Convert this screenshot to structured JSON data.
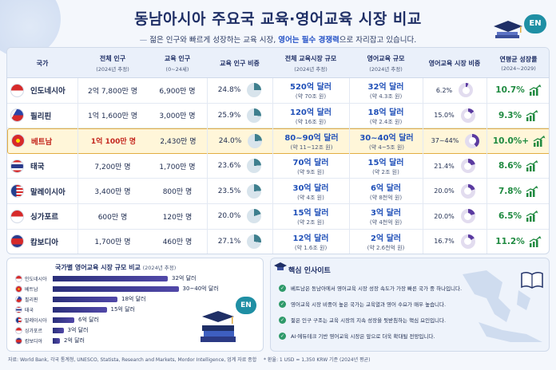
{
  "header": {
    "title": "동남아시아 주요국 교육·영어교육 시장 비교",
    "subtitle_pre": "젊은 인구와 빠르게 성장하는 교육 시장, ",
    "subtitle_hl1": "영어는 필수 경쟁력",
    "subtitle_post": "으로 자리잡고 있습니다.",
    "en_badge": "EN"
  },
  "table": {
    "columns": {
      "country": "국가",
      "pop": "전체 인구",
      "pop_sub": "(2024년 추정)",
      "edu_pop": "교육 인구",
      "edu_pop_sub": "(0~24세)",
      "edu_ratio": "교육 인구 비중",
      "edu_market": "전체 교육시장 규모",
      "edu_market_sub": "(2024년 추정)",
      "eng_market": "영어교육 규모",
      "eng_market_sub": "(2024년 추정)",
      "eng_share": "영어교육 시장 비중",
      "cagr": "연평균 성장률",
      "cagr_sub": "(2024~2029)",
      "en_icon": "EN"
    },
    "rows": [
      {
        "country": "인도네시아",
        "pop": "2억 7,800만 명",
        "edu_pop": "6,900만 명",
        "edu_ratio": "24.8%",
        "edu_ratio_v": 24.8,
        "market": "520억 달러",
        "market_krw": "(약 70조 원)",
        "eng": "32억 달러",
        "eng_krw": "(약 4.3조 원)",
        "share": "6.2%",
        "share_v": 6.2,
        "cagr": "10.7%"
      },
      {
        "country": "필리핀",
        "pop": "1억 1,600만 명",
        "edu_pop": "3,000만 명",
        "edu_ratio": "25.9%",
        "edu_ratio_v": 25.9,
        "market": "120억 달러",
        "market_krw": "(약 16조 원)",
        "eng": "18억 달러",
        "eng_krw": "(약 2.4조 원)",
        "share": "15.0%",
        "share_v": 15.0,
        "cagr": "9.3%"
      },
      {
        "country": "베트남",
        "pop": "1억 100만 명",
        "edu_pop": "2,430만 명",
        "edu_ratio": "24.0%",
        "edu_ratio_v": 24.0,
        "market": "80~90억 달러",
        "market_krw": "(약 11~12조 원)",
        "eng": "30~40억 달러",
        "eng_krw": "(약 4~5조 원)",
        "share": "37~44%",
        "share_v": 40,
        "cagr": "10.0%+"
      },
      {
        "country": "태국",
        "pop": "7,200만 명",
        "edu_pop": "1,700만 명",
        "edu_ratio": "23.6%",
        "edu_ratio_v": 23.6,
        "market": "70억 달러",
        "market_krw": "(약 9조 원)",
        "eng": "15억 달러",
        "eng_krw": "(약 2조 원)",
        "share": "21.4%",
        "share_v": 21.4,
        "cagr": "8.6%"
      },
      {
        "country": "말레이시아",
        "pop": "3,400만 명",
        "edu_pop": "800만 명",
        "edu_ratio": "23.5%",
        "edu_ratio_v": 23.5,
        "market": "30억 달러",
        "market_krw": "(약 4조 원)",
        "eng": "6억 달러",
        "eng_krw": "(약 8천억 원)",
        "share": "20.0%",
        "share_v": 20.0,
        "cagr": "7.8%"
      },
      {
        "country": "싱가포르",
        "pop": "600만 명",
        "edu_pop": "120만 명",
        "edu_ratio": "20.0%",
        "edu_ratio_v": 20.0,
        "market": "15억 달러",
        "market_krw": "(약 2조 원)",
        "eng": "3억 달러",
        "eng_krw": "(약 4천억 원)",
        "share": "20.0%",
        "share_v": 20.0,
        "cagr": "6.5%"
      },
      {
        "country": "캄보디아",
        "pop": "1,700만 명",
        "edu_pop": "460만 명",
        "edu_ratio": "27.1%",
        "edu_ratio_v": 27.1,
        "market": "12억 달러",
        "market_krw": "(약 1.6조 원)",
        "eng": "2억 달러",
        "eng_krw": "(약 2.6천억 원)",
        "share": "16.7%",
        "share_v": 16.7,
        "cagr": "11.2%"
      }
    ]
  },
  "bar_panel": {
    "title": "국가별 영어교육 시장 규모 비교",
    "title_sub": "(2024년 추정)",
    "en_badge": "EN"
  },
  "chart_data": {
    "type": "bar",
    "title": "국가별 영어교육 시장 규모 비교",
    "categories": [
      "인도네시아",
      "베트남",
      "필리핀",
      "태국",
      "말레이시아",
      "싱가포르",
      "캄보디아"
    ],
    "values": [
      32,
      35,
      18,
      15,
      6,
      3,
      2
    ],
    "value_labels": [
      "32억 달러",
      "30~40억 달러",
      "18억 달러",
      "15억 달러",
      "6억 달러",
      "3억 달러",
      "2억 달러"
    ],
    "orientation": "horizontal"
  },
  "insights": {
    "title": "핵심 인사이트",
    "items": [
      "베트남은 동남아에서 영어교육 시장 성장 속도가 가장 빠른 국가 중 하나입니다.",
      "영어교육 시장 비중이 높은 국가는 교육열과 영어 수요가 매우 높습니다.",
      "젊은 인구 구조는 교육 시장의 지속 성장을 뒷받침하는 핵심 요인입니다.",
      "AI·에듀테크 기반 영어교육 시장은 앞으로 더욱 확대될 전망입니다."
    ]
  },
  "footer": {
    "source": "자료: World Bank, 각국 통계청, UNESCO, Statista, Research and Markets, Mordor Intelligence, 업계 자료 종합",
    "note": "* 환율: 1 USD = 1,350 KRW 기준 (2024년 평균)"
  },
  "colors": {
    "navy": "#1f2f66",
    "accent_blue": "#2050b8",
    "green": "#1f8a40",
    "highlight": "#fff6d9",
    "pie_teal": "#3e7f8e",
    "donut_purple": "#5a3aa0"
  }
}
